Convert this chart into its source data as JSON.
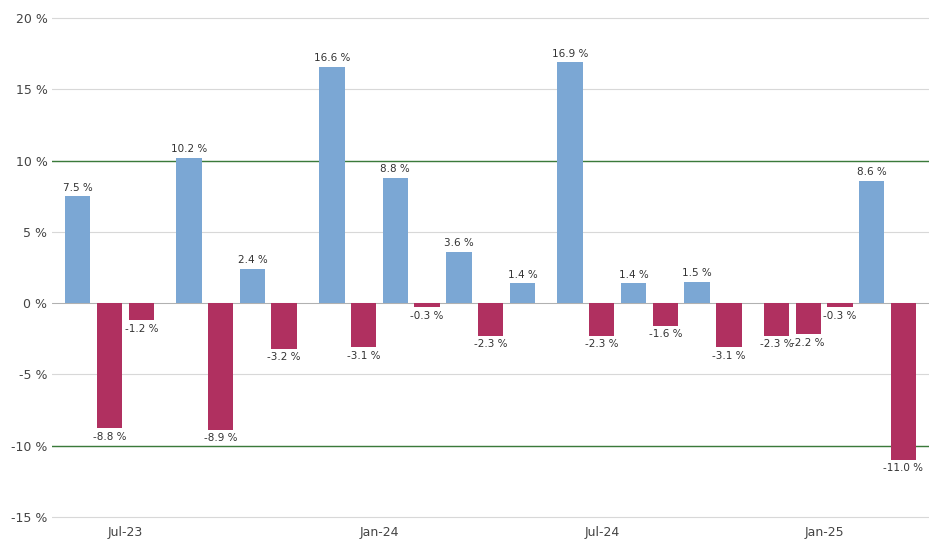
{
  "bars": [
    {
      "x": 0,
      "value": 7.5,
      "color": "#7ba7d4"
    },
    {
      "x": 1,
      "value": -8.8,
      "color": "#b03060"
    },
    {
      "x": 2,
      "value": -1.2,
      "color": "#b03060"
    },
    {
      "x": 3.5,
      "value": 10.2,
      "color": "#7ba7d4"
    },
    {
      "x": 4.5,
      "value": -8.9,
      "color": "#b03060"
    },
    {
      "x": 5.5,
      "value": 2.4,
      "color": "#7ba7d4"
    },
    {
      "x": 6.5,
      "value": -3.2,
      "color": "#b03060"
    },
    {
      "x": 8,
      "value": 16.6,
      "color": "#7ba7d4"
    },
    {
      "x": 9,
      "value": -3.1,
      "color": "#b03060"
    },
    {
      "x": 10,
      "value": 8.8,
      "color": "#7ba7d4"
    },
    {
      "x": 11,
      "value": -0.3,
      "color": "#b03060"
    },
    {
      "x": 12,
      "value": 3.6,
      "color": "#7ba7d4"
    },
    {
      "x": 13,
      "value": -2.3,
      "color": "#b03060"
    },
    {
      "x": 14,
      "value": 1.4,
      "color": "#7ba7d4"
    },
    {
      "x": 15.5,
      "value": 16.9,
      "color": "#7ba7d4"
    },
    {
      "x": 16.5,
      "value": -2.3,
      "color": "#b03060"
    },
    {
      "x": 17.5,
      "value": 1.4,
      "color": "#7ba7d4"
    },
    {
      "x": 18.5,
      "value": -1.6,
      "color": "#b03060"
    },
    {
      "x": 19.5,
      "value": 1.5,
      "color": "#7ba7d4"
    },
    {
      "x": 20.5,
      "value": -3.1,
      "color": "#b03060"
    },
    {
      "x": 22,
      "value": -2.3,
      "color": "#b03060"
    },
    {
      "x": 23,
      "value": -2.2,
      "color": "#b03060"
    },
    {
      "x": 24,
      "value": -0.3,
      "color": "#b03060"
    },
    {
      "x": 25,
      "value": 8.6,
      "color": "#7ba7d4"
    },
    {
      "x": 26,
      "value": -11.0,
      "color": "#b03060"
    }
  ],
  "xtick_positions": [
    1.5,
    9.5,
    16.5,
    23.5
  ],
  "xtick_labels": [
    "Jul-23",
    "Jan-24",
    "Jul-24",
    "Jan-25"
  ],
  "ylim": [
    -15,
    20
  ],
  "yticks": [
    -15,
    -10,
    -5,
    0,
    5,
    10,
    15,
    20
  ],
  "hlines": [
    10,
    -10
  ],
  "hline_color": "#3a7a3a",
  "grid_color": "#d8d8d8",
  "background_color": "#ffffff",
  "bar_width": 0.8,
  "label_fontsize": 7.5,
  "tick_fontsize": 9,
  "label_color": "#333333"
}
